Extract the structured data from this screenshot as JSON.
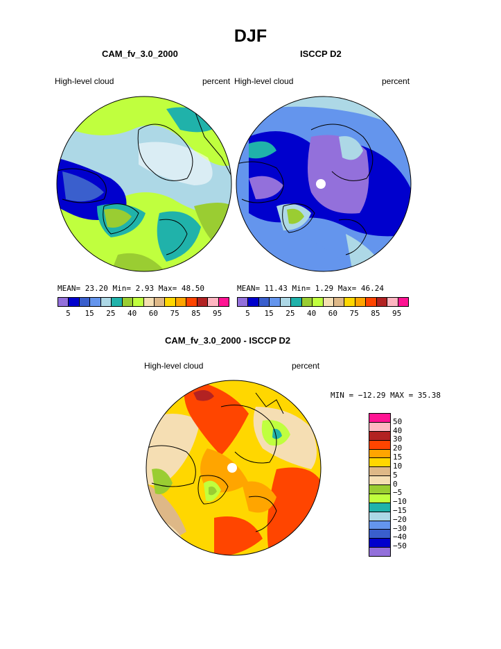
{
  "title": "DJF",
  "panels": [
    {
      "subtitle": "CAM_fv_3.0_2000",
      "left_label": "High-level cloud",
      "right_label": "percent",
      "stats": {
        "mean_label": "MEAN=",
        "mean": "23.20",
        "min_label": "Min=",
        "min": "2.93",
        "max_label": "Max=",
        "max": "48.50"
      },
      "colors": [
        "#9370db",
        "#0000cd",
        "#3a5fcd",
        "#6495ed",
        "#add8e6",
        "#20b2aa",
        "#9acd32",
        "#c0ff3e",
        "#f5deb3",
        "#deb887",
        "#ffd700",
        "#ffa500",
        "#ff4500",
        "#b22222",
        "#ffb6c1",
        "#ff1493"
      ],
      "ticks": [
        "5",
        "15",
        "25",
        "40",
        "60",
        "75",
        "85",
        "95"
      ]
    },
    {
      "subtitle": "ISCCP D2",
      "left_label": "High-level cloud",
      "right_label": "percent",
      "stats": {
        "mean_label": "MEAN=",
        "mean": "11.43",
        "min_label": "Min=",
        "min": "1.29",
        "max_label": "Max=",
        "max": "46.24"
      },
      "colors": [
        "#9370db",
        "#0000cd",
        "#3a5fcd",
        "#6495ed",
        "#add8e6",
        "#20b2aa",
        "#9acd32",
        "#c0ff3e",
        "#f5deb3",
        "#deb887",
        "#ffd700",
        "#ffa500",
        "#ff4500",
        "#b22222",
        "#ffb6c1",
        "#ff1493"
      ],
      "ticks": [
        "5",
        "15",
        "25",
        "40",
        "60",
        "75",
        "85",
        "95"
      ]
    }
  ],
  "diff": {
    "subtitle": "CAM_fv_3.0_2000 - ISCCP D2",
    "left_label": "High-level cloud",
    "right_label": "percent",
    "minmax": "MIN = −12.29 MAX =  35.38",
    "colors": [
      "#ff1493",
      "#ffb6c1",
      "#b22222",
      "#ff4500",
      "#ffa500",
      "#ffd700",
      "#deb887",
      "#f5deb3",
      "#9acd32",
      "#c0ff3e",
      "#20b2aa",
      "#add8e6",
      "#6495ed",
      "#3a5fcd",
      "#0000cd",
      "#9370db"
    ],
    "ticks": [
      "50",
      "40",
      "30",
      "20",
      "15",
      "10",
      "5",
      "0",
      "−5",
      "−10",
      "−15",
      "−20",
      "−30",
      "−40",
      "−50"
    ]
  }
}
